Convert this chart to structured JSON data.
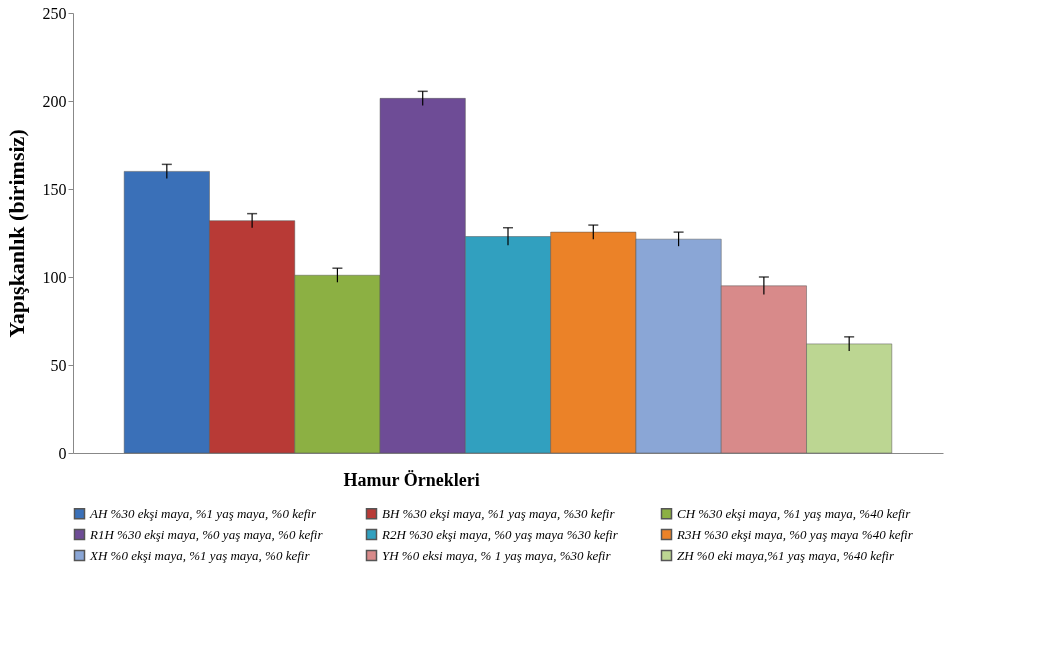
{
  "chart_data": {
    "type": "bar",
    "categories": [
      null
    ],
    "xlabel": "Hamur Örnekleri",
    "ylabel": "Yapışkanlık (birimsiz)",
    "ylim": [
      0,
      250
    ],
    "yticks": [
      0,
      50,
      100,
      150,
      200,
      250
    ],
    "grid": false,
    "legend": "bottom",
    "tick_labels": "y",
    "series": [
      {
        "name": "AH %30 ekşi maya, %1 yaş maya, %0 kefir",
        "color": "#3a70b8",
        "values": [
          160
        ],
        "errors": [
          4
        ]
      },
      {
        "name": "BH %30 ekşi maya, %1 yaş maya, %30 kefir",
        "color": "#b83a36",
        "values": [
          132
        ],
        "errors": [
          4
        ]
      },
      {
        "name": "CH %30 ekşi maya, %1 yaş maya, %40 kefir",
        "color": "#8cb043",
        "values": [
          101
        ],
        "errors": [
          4
        ]
      },
      {
        "name": "R1H %30 ekşi maya, %0 yaş maya, %0 kefir",
        "color": "#6e4c96",
        "values": [
          201.5
        ],
        "errors": [
          4
        ]
      },
      {
        "name": "R2H %30 ekşi maya, %0 yaş maya %30 kefir",
        "color": "#31a0bf",
        "values": [
          123
        ],
        "errors": [
          5
        ]
      },
      {
        "name": "R3H %30 ekşi maya, %0 yaş maya %40 kefir",
        "color": "#eb8228",
        "values": [
          125.5
        ],
        "errors": [
          4
        ]
      },
      {
        "name": "XH %0 ekşi maya, %1 yaş maya, %0 kefir",
        "color": "#8aa6d6",
        "values": [
          121.5
        ],
        "errors": [
          4
        ]
      },
      {
        "name": "YH %0 eksi maya, % 1 yaş maya, %30 kefir",
        "color": "#d88a8a",
        "values": [
          95
        ],
        "errors": [
          5
        ]
      },
      {
        "name": "ZH %0 eki maya,%1 yaş maya, %40 kefir",
        "color": "#bcd692",
        "values": [
          62
        ],
        "errors": [
          4
        ]
      }
    ]
  }
}
